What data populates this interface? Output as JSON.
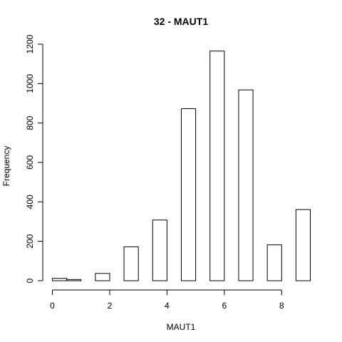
{
  "chart_data": {
    "type": "bar",
    "title": "32 - MAUT1",
    "xlabel": "MAUT1",
    "ylabel": "Frequency",
    "xlim": [
      0,
      9
    ],
    "ylim": [
      0,
      1200
    ],
    "x_ticks": [
      0,
      2,
      4,
      6,
      8
    ],
    "y_ticks": [
      0,
      200,
      400,
      600,
      800,
      1000,
      1200
    ],
    "bins": [
      {
        "x0": 0.0,
        "x1": 0.5,
        "value": 12
      },
      {
        "x0": 0.5,
        "x1": 1.0,
        "value": 6
      },
      {
        "x0": 1.0,
        "x1": 1.5,
        "value": 0
      },
      {
        "x0": 1.5,
        "x1": 2.0,
        "value": 37
      },
      {
        "x0": 2.0,
        "x1": 2.5,
        "value": 0
      },
      {
        "x0": 2.5,
        "x1": 3.0,
        "value": 172
      },
      {
        "x0": 3.0,
        "x1": 3.5,
        "value": 0
      },
      {
        "x0": 3.5,
        "x1": 4.0,
        "value": 308
      },
      {
        "x0": 4.0,
        "x1": 4.5,
        "value": 0
      },
      {
        "x0": 4.5,
        "x1": 5.0,
        "value": 873
      },
      {
        "x0": 5.0,
        "x1": 5.5,
        "value": 0
      },
      {
        "x0": 5.5,
        "x1": 6.0,
        "value": 1165
      },
      {
        "x0": 6.0,
        "x1": 6.5,
        "value": 0
      },
      {
        "x0": 6.5,
        "x1": 7.0,
        "value": 968
      },
      {
        "x0": 7.0,
        "x1": 7.5,
        "value": 0
      },
      {
        "x0": 7.5,
        "x1": 8.0,
        "value": 182
      },
      {
        "x0": 8.0,
        "x1": 8.5,
        "value": 0
      },
      {
        "x0": 8.5,
        "x1": 9.0,
        "value": 361
      }
    ],
    "grid": false,
    "legend": "none"
  }
}
